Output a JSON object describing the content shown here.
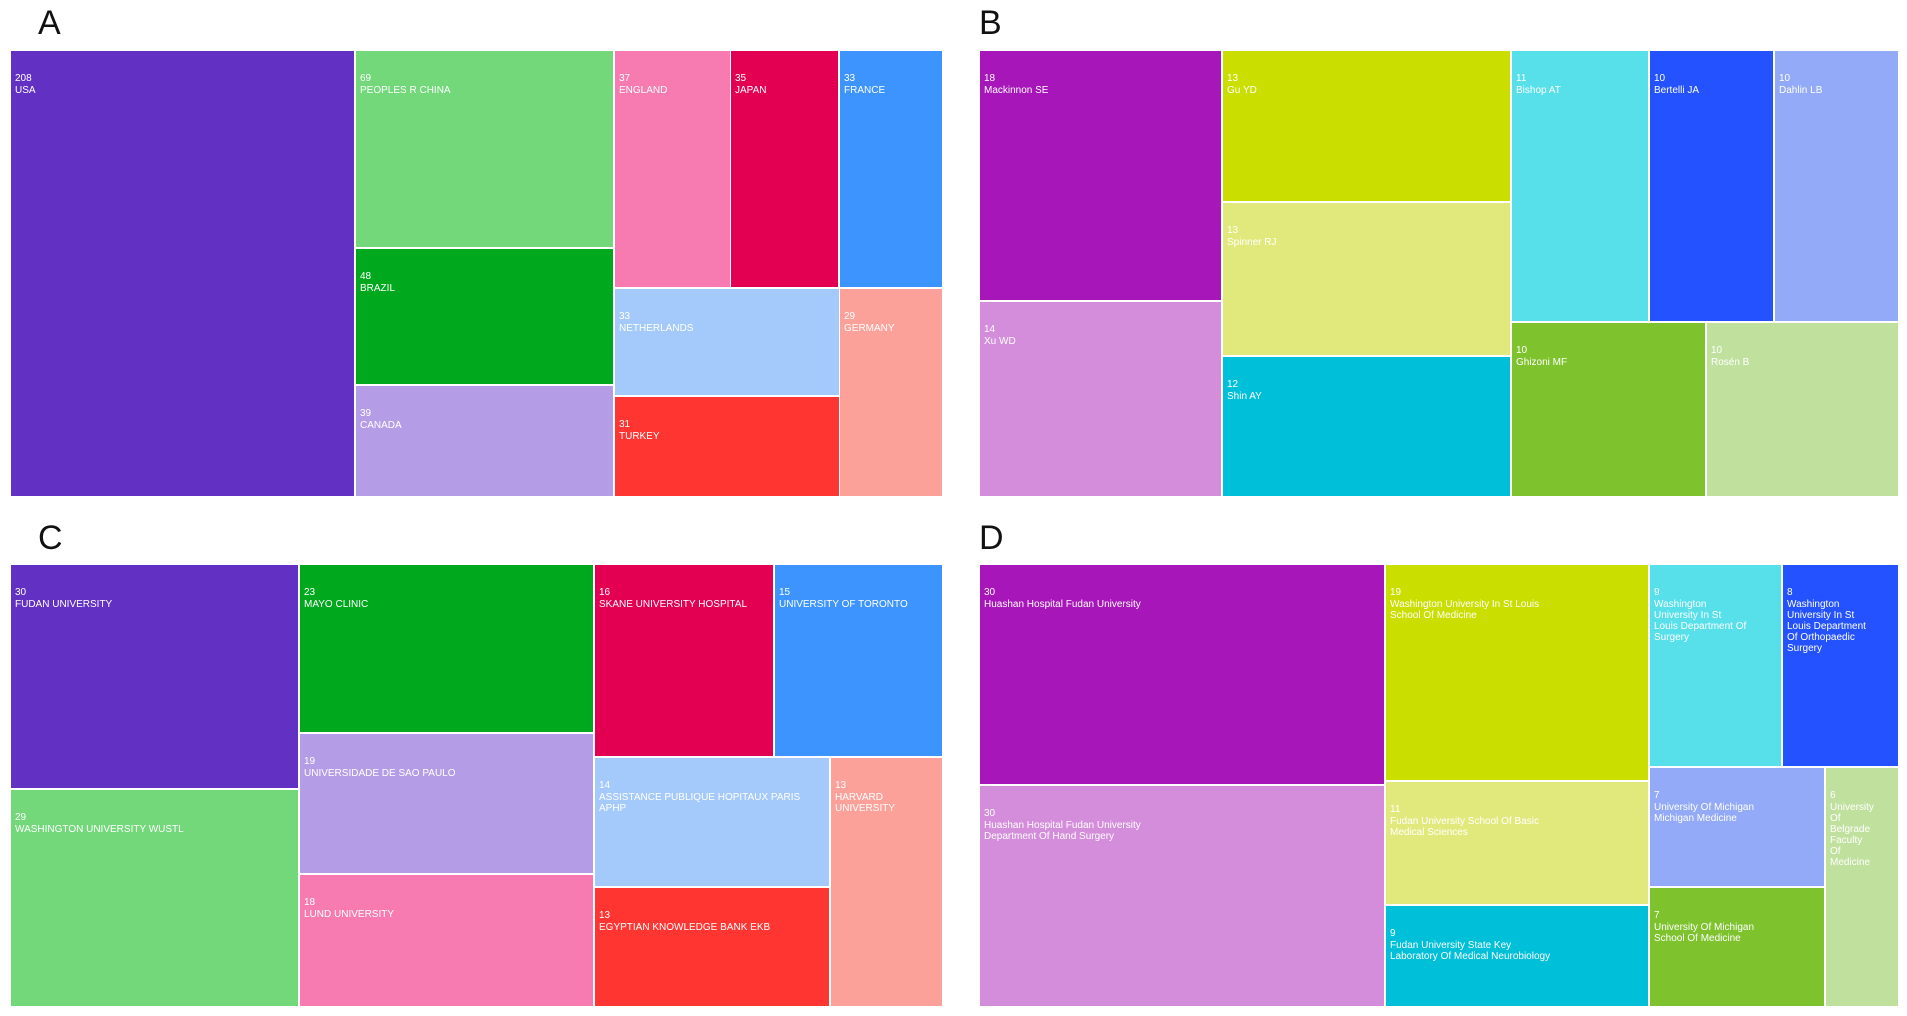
{
  "chart_data": [
    {
      "type": "treemap",
      "panel_label": "A",
      "cells": [
        {
          "label": "USA",
          "value": 208,
          "color": "#6330c4"
        },
        {
          "label": "PEOPLES R CHINA",
          "value": 69,
          "color": "#72d87a"
        },
        {
          "label": "BRAZIL",
          "value": 48,
          "color": "#00a81e"
        },
        {
          "label": "CANADA",
          "value": 39,
          "color": "#b59ce6"
        },
        {
          "label": "ENGLAND",
          "value": 37,
          "color": "#f77bb0"
        },
        {
          "label": "JAPAN",
          "value": 35,
          "color": "#e30052"
        },
        {
          "label": "FRANCE",
          "value": 33,
          "color": "#3d94ff"
        },
        {
          "label": "NETHERLANDS",
          "value": 33,
          "color": "#a4c9fb"
        },
        {
          "label": "TURKEY",
          "value": 31,
          "color": "#ff3532"
        },
        {
          "label": "GERMANY",
          "value": 29,
          "color": "#fca19a"
        }
      ]
    },
    {
      "type": "treemap",
      "panel_label": "B",
      "cells": [
        {
          "label": "Mackinnon SE",
          "value": 18,
          "color": "#a616b8"
        },
        {
          "label": "Xu WD",
          "value": 14,
          "color": "#d48ddb"
        },
        {
          "label": "Gu YD",
          "value": 13,
          "color": "#cade00"
        },
        {
          "label": "Spinner RJ",
          "value": 13,
          "color": "#e1e97c"
        },
        {
          "label": "Shin AY",
          "value": 12,
          "color": "#00bfd8"
        },
        {
          "label": "Bishop AT",
          "value": 11,
          "color": "#57e0ea"
        },
        {
          "label": "Bertelli JA",
          "value": 10,
          "color": "#2452ff"
        },
        {
          "label": "Dahlin LB",
          "value": 10,
          "color": "#93aaf8"
        },
        {
          "label": "Ghizoni MF",
          "value": 10,
          "color": "#7ec22e"
        },
        {
          "label": "Rosén B",
          "value": 10,
          "color": "#c0e09e"
        }
      ]
    },
    {
      "type": "treemap",
      "panel_label": "C",
      "cells": [
        {
          "label": "FUDAN UNIVERSITY",
          "value": 30,
          "color": "#6330c4"
        },
        {
          "label": "WASHINGTON UNIVERSITY WUSTL",
          "value": 29,
          "color": "#72d87a"
        },
        {
          "label": "MAYO CLINIC",
          "value": 23,
          "color": "#00a81e"
        },
        {
          "label": "UNIVERSIDADE DE SAO PAULO",
          "value": 19,
          "color": "#b59ce6"
        },
        {
          "label": "LUND UNIVERSITY",
          "value": 18,
          "color": "#f77bb0"
        },
        {
          "label": "SKANE UNIVERSITY HOSPITAL",
          "value": 16,
          "color": "#e30052"
        },
        {
          "label": "UNIVERSITY OF TORONTO",
          "value": 15,
          "color": "#3d94ff"
        },
        {
          "label": "ASSISTANCE PUBLIQUE HOPITAUX PARIS APHP",
          "value": 14,
          "color": "#a4c9fb"
        },
        {
          "label": "EGYPTIAN KNOWLEDGE BANK EKB",
          "value": 13,
          "color": "#ff3532"
        },
        {
          "label": "HARVARD UNIVERSITY",
          "value": 13,
          "color": "#fca19a"
        }
      ]
    },
    {
      "type": "treemap",
      "panel_label": "D",
      "cells": [
        {
          "label": "Huashan Hospital Fudan University",
          "value": 30,
          "color": "#a616b8"
        },
        {
          "label": "Huashan Hospital Fudan University Department Of Hand Surgery",
          "value": 30,
          "color": "#d48ddb"
        },
        {
          "label": "Washington University In St Louis School Of Medicine",
          "value": 19,
          "color": "#cade00"
        },
        {
          "label": "Fudan University School Of Basic Medical Sciences",
          "value": 11,
          "color": "#e1e97c"
        },
        {
          "label": "Fudan University State Key Laboratory Of Medical Neurobiology",
          "value": 9,
          "color": "#00bfd8"
        },
        {
          "label": "Washington University In St Louis Department Of Surgery",
          "value": 9,
          "color": "#57e0ea"
        },
        {
          "label": "Washington University In St Louis Department Of Orthopaedic Surgery",
          "value": 8,
          "color": "#2452ff"
        },
        {
          "label": "University Of Michigan Michigan Medicine",
          "value": 7,
          "color": "#93aaf8"
        },
        {
          "label": "University Of Michigan School Of Medicine",
          "value": 7,
          "color": "#7ec22e"
        },
        {
          "label": "University Of Belgrade Faculty Of Medicine",
          "value": 6,
          "color": "#c0e09e"
        }
      ]
    }
  ]
}
